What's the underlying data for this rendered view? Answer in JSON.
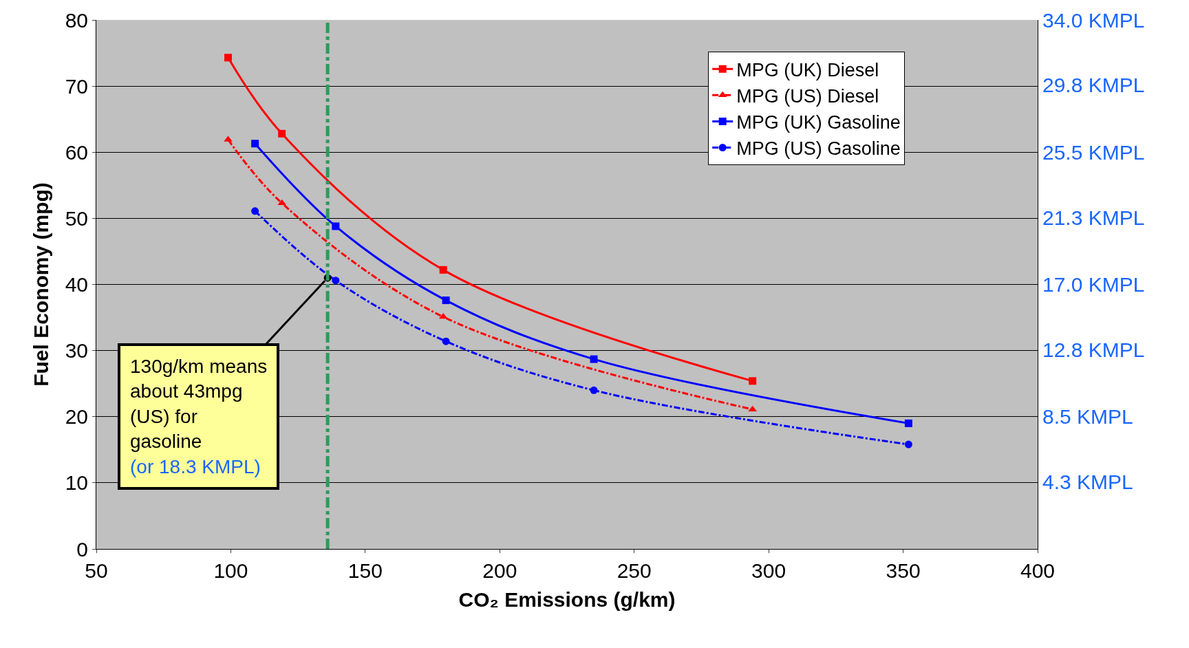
{
  "chart_data": {
    "type": "line",
    "xlabel": "CO₂ Emissions (g/km)",
    "ylabel": "Fuel Economy (mpg)",
    "xlim": [
      50,
      400
    ],
    "xticks": [
      50,
      100,
      150,
      200,
      250,
      300,
      350,
      400
    ],
    "ylim": [
      0,
      80
    ],
    "yticks": [
      0,
      10,
      20,
      30,
      40,
      50,
      60,
      70,
      80
    ],
    "y2lim": [
      0,
      34.0
    ],
    "y2ticks": [
      {
        "value": 34.0,
        "label": "34.0 KMPL"
      },
      {
        "value": 29.8,
        "label": "29.8 KMPL"
      },
      {
        "value": 25.5,
        "label": "25.5 KMPL"
      },
      {
        "value": 21.3,
        "label": "21.3 KMPL"
      },
      {
        "value": 17.0,
        "label": "17.0 KMPL"
      },
      {
        "value": 12.8,
        "label": "12.8 KMPL"
      },
      {
        "value": 8.5,
        "label": "8.5 KMPL"
      },
      {
        "value": 4.3,
        "label": "4.3 KMPL"
      }
    ],
    "grid": "y",
    "legend": "top right",
    "series": [
      {
        "name": "MPG (UK) Diesel",
        "color": "#ff0000",
        "marker": "square",
        "line_style": "solid",
        "x": [
          99,
          119,
          179,
          294
        ],
        "values": [
          74.3,
          62.8,
          42.2,
          25.4
        ]
      },
      {
        "name": "MPG (US) Diesel",
        "color": "#ff0000",
        "marker": "triangle",
        "line_style": "dashed",
        "x": [
          99,
          119,
          179,
          294
        ],
        "values": [
          61.9,
          52.3,
          35.1,
          21.1
        ]
      },
      {
        "name": "MPG (UK) Gasoline",
        "color": "#0000ff",
        "marker": "square",
        "line_style": "solid",
        "x": [
          109,
          139,
          180,
          235,
          352
        ],
        "values": [
          61.3,
          48.8,
          37.6,
          28.7,
          19.0
        ]
      },
      {
        "name": "MPG (US) Gasoline",
        "color": "#0000ff",
        "marker": "circle",
        "line_style": "dashed",
        "x": [
          109,
          139,
          180,
          235,
          352
        ],
        "values": [
          51.1,
          40.6,
          31.4,
          24.0,
          15.8
        ]
      }
    ],
    "ref_lines": [
      {
        "axis": "x",
        "value": 136,
        "color": "#2e9a5c",
        "line_style": "dashed"
      }
    ],
    "annotations": [
      {
        "text": "130g/km means about 43mpg (US) for gasoline",
        "x": 136,
        "y": 41
      },
      "(or 18.3 KMPL)"
    ]
  }
}
